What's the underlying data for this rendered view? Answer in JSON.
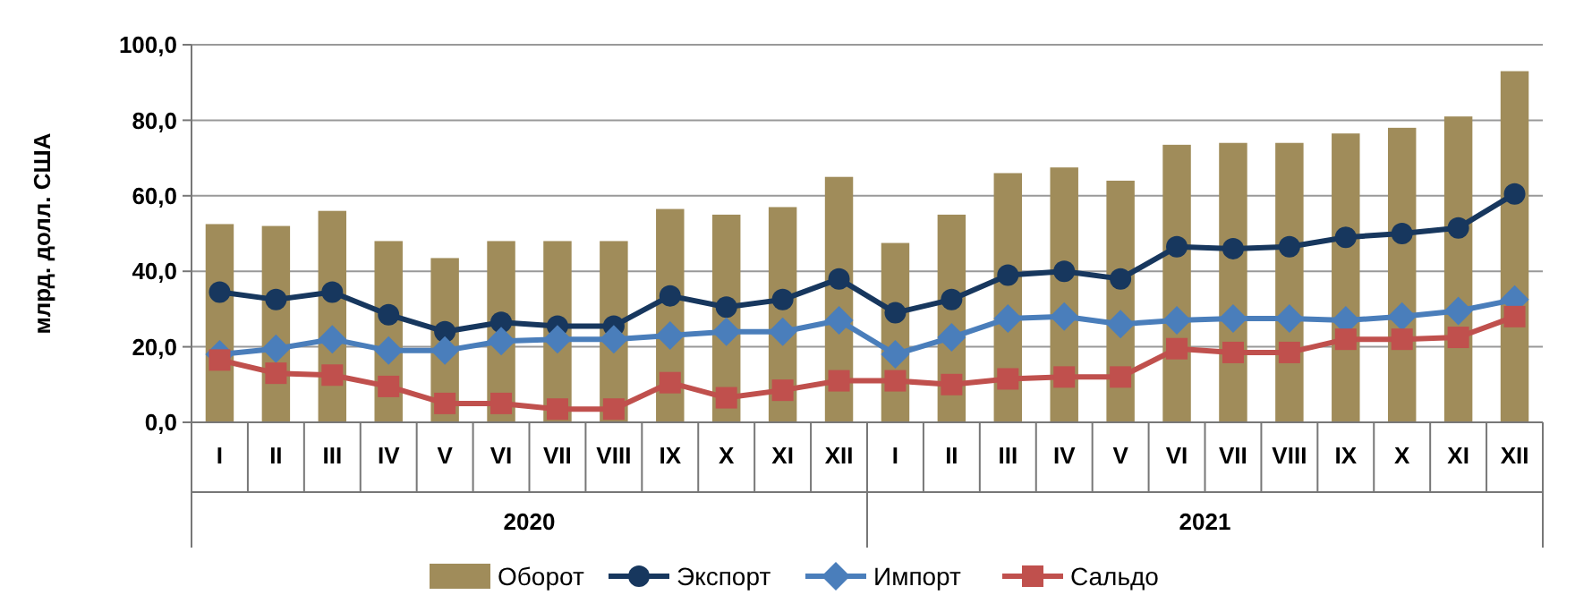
{
  "chart_data": {
    "type": "bar",
    "ylabel": "млрд. долл. США",
    "categories": [
      "I",
      "II",
      "III",
      "IV",
      "V",
      "VI",
      "VII",
      "VIII",
      "IX",
      "X",
      "XI",
      "XII",
      "I",
      "II",
      "III",
      "IV",
      "V",
      "VI",
      "VII",
      "VIII",
      "IX",
      "X",
      "XI",
      "XII"
    ],
    "annotations": [
      "2020",
      "2021"
    ],
    "ylim": [
      0,
      100
    ],
    "yticks": [
      {
        "value": 0,
        "label": "0,0"
      },
      {
        "value": 20,
        "label": "20,0"
      },
      {
        "value": 40,
        "label": "40,0"
      },
      {
        "value": 60,
        "label": "60,0"
      },
      {
        "value": 80,
        "label": "80,0"
      },
      {
        "value": 100,
        "label": "100,0"
      }
    ],
    "grid": "y",
    "legend": "bottom",
    "series": [
      {
        "name": "Оборот",
        "color": "#a08c5a",
        "values": [
          52.5,
          52,
          56,
          48,
          43.5,
          48,
          48,
          48,
          56.5,
          55,
          57,
          65,
          47.5,
          55,
          66,
          67.5,
          64,
          73.5,
          74,
          74,
          76.5,
          78,
          81,
          93
        ]
      },
      {
        "name": "Экспорт",
        "type": "line",
        "marker": "circle",
        "color": "#17375e",
        "values": [
          34.5,
          32.5,
          34.5,
          28.5,
          24,
          26.5,
          25.5,
          25.5,
          33.5,
          30.5,
          32.5,
          38,
          29,
          32.5,
          39,
          40,
          38,
          46.5,
          46,
          46.5,
          49,
          50,
          51.5,
          60.5
        ]
      },
      {
        "name": "Импорт",
        "type": "line",
        "marker": "diamond",
        "color": "#4a7ebb",
        "values": [
          18,
          19.5,
          22,
          19,
          19,
          21.5,
          22,
          22,
          23,
          24,
          24,
          27,
          18,
          22.5,
          27.5,
          28,
          26,
          27,
          27.5,
          27.5,
          27,
          28,
          29.5,
          32.5
        ]
      },
      {
        "name": "Сальдо",
        "type": "line",
        "marker": "square",
        "color": "#c0504d",
        "values": [
          16.5,
          13,
          12.5,
          9.5,
          5,
          5,
          3.5,
          3.5,
          10.5,
          6.5,
          8.5,
          11,
          11,
          10,
          11.5,
          12,
          12,
          19.5,
          18.5,
          18.5,
          22,
          22,
          22.5,
          28
        ]
      }
    ]
  }
}
